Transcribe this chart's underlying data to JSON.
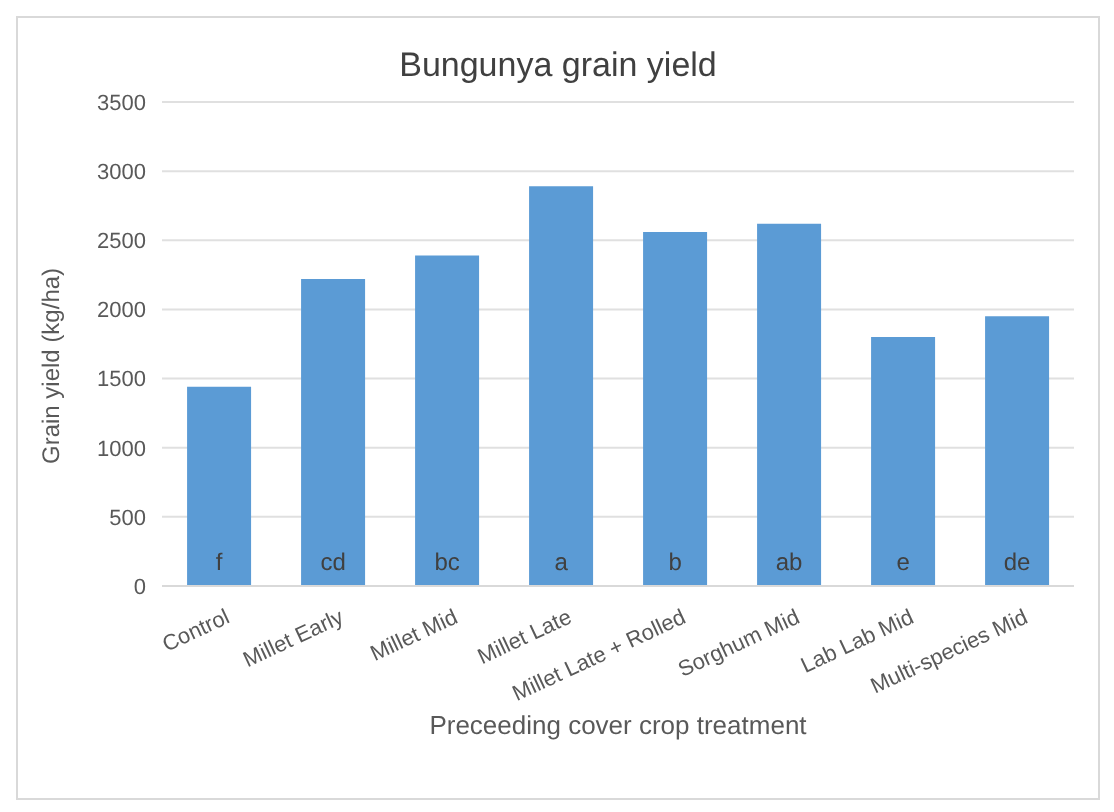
{
  "chart_data": {
    "type": "bar",
    "title": "Bungunya grain yield",
    "xlabel": "Preceeding cover crop treatment",
    "ylabel": "Grain yield (kg/ha)",
    "categories": [
      "Control",
      "Millet Early",
      "Millet Mid",
      "Millet Late",
      "Millet Late + Rolled",
      "Sorghum Mid",
      "Lab Lab Mid",
      "Multi-species Mid"
    ],
    "values": [
      1440,
      2220,
      2390,
      2890,
      2560,
      2620,
      1800,
      1950
    ],
    "color": "#5b9bd5",
    "ylim": [
      0,
      3500
    ],
    "yticks": [
      0,
      500,
      1000,
      1500,
      2000,
      2500,
      3000,
      3500
    ],
    "grid": "y",
    "legend": false,
    "value_labels": [
      "f",
      "cd",
      "bc",
      "a",
      "b",
      "ab",
      "e",
      "de"
    ]
  }
}
